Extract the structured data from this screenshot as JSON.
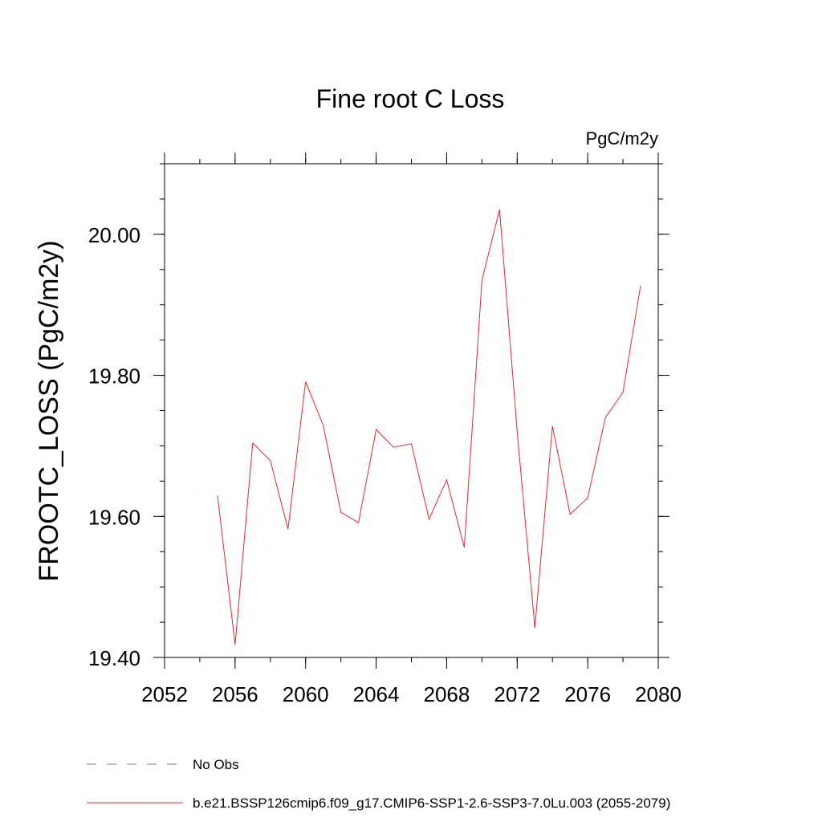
{
  "chart_data": {
    "type": "line",
    "title": "Fine root C Loss",
    "units_label": "PgC/m2y",
    "ylabel": "FROOTC_LOSS  (PgC/m2y)",
    "xlabel": "",
    "xlim": [
      2052,
      2080
    ],
    "ylim": [
      19.4,
      20.1
    ],
    "x_ticks": [
      2052,
      2056,
      2060,
      2064,
      2068,
      2072,
      2076,
      2080
    ],
    "x_tick_labels": [
      "2052",
      "2056",
      "2060",
      "2064",
      "2068",
      "2072",
      "2076",
      "2080"
    ],
    "y_ticks": [
      19.4,
      19.6,
      19.8,
      20.0
    ],
    "y_tick_labels": [
      "19.40",
      "19.60",
      "19.80",
      "20.00"
    ],
    "y_minor_step": 0.05,
    "x_minor_step": 2,
    "grid": false,
    "legend_position": "bottom-left",
    "series": [
      {
        "name": "b.e21.BSSP126cmip6.f09_g17.CMIP6-SSP1-2.6-SSP3-7.0Lu.003 (2055-2079)",
        "color": "#e8242a",
        "style": "solid",
        "x": [
          2055,
          2056,
          2057,
          2058,
          2059,
          2060,
          2061,
          2062,
          2063,
          2064,
          2065,
          2066,
          2067,
          2068,
          2069,
          2070,
          2071,
          2072,
          2073,
          2074,
          2075,
          2076,
          2077,
          2078,
          2079
        ],
        "y": [
          19.63,
          19.418,
          19.704,
          19.679,
          19.582,
          19.791,
          19.729,
          19.606,
          19.591,
          19.723,
          19.698,
          19.703,
          19.596,
          19.652,
          19.556,
          19.935,
          20.035,
          19.72,
          19.442,
          19.728,
          19.603,
          19.626,
          19.74,
          19.776,
          19.927
        ]
      }
    ],
    "legend": [
      {
        "label": "No Obs",
        "color": "#7b68b5",
        "style": "dashed"
      },
      {
        "label": "b.e21.BSSP126cmip6.f09_g17.CMIP6-SSP1-2.6-SSP3-7.0Lu.003 (2055-2079)",
        "color": "#e8242a",
        "style": "solid"
      }
    ]
  }
}
